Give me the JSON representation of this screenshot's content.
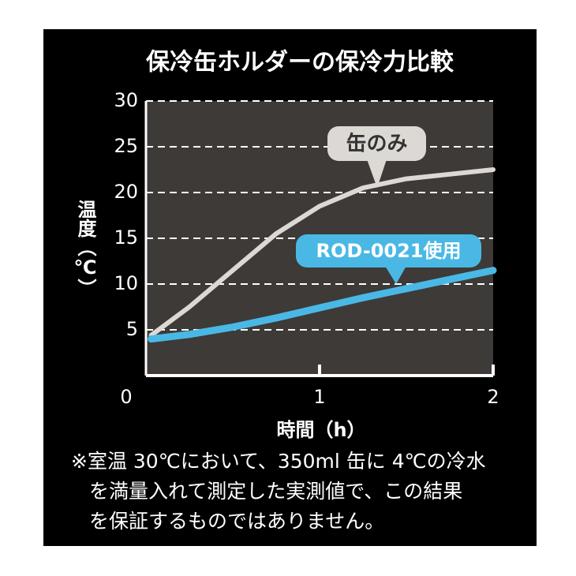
{
  "chart_data": {
    "type": "line",
    "title": "保冷缶ホルダーの保冷力比較",
    "x_label": "時間（h）",
    "y_label": "温度（℃）",
    "x": [
      0.03,
      0.25,
      0.5,
      0.75,
      1,
      1.25,
      1.5,
      1.75,
      2
    ],
    "series": [
      {
        "name": "缶のみ",
        "color": "#dcd9d4",
        "values": [
          4.4,
          7.5,
          11.5,
          15.5,
          18.5,
          20.5,
          21.5,
          22,
          22.5
        ]
      },
      {
        "name": "ROD-0021使用",
        "color": "#4ab8e5",
        "values": [
          4,
          4.5,
          5.3,
          6.3,
          7.4,
          8.5,
          9.5,
          10.5,
          11.5
        ]
      }
    ],
    "xlim": [
      0,
      2
    ],
    "xticks": [
      0,
      1,
      2
    ],
    "ylim": [
      0,
      30
    ],
    "yticks": [
      5,
      10,
      15,
      20,
      25,
      30
    ],
    "grid": true,
    "notes": [
      "※室温 30℃において、350ml 缶に 4℃の冷水",
      "を満量入れて測定した実測値で、この結果",
      "を保証するものではありません。"
    ]
  }
}
